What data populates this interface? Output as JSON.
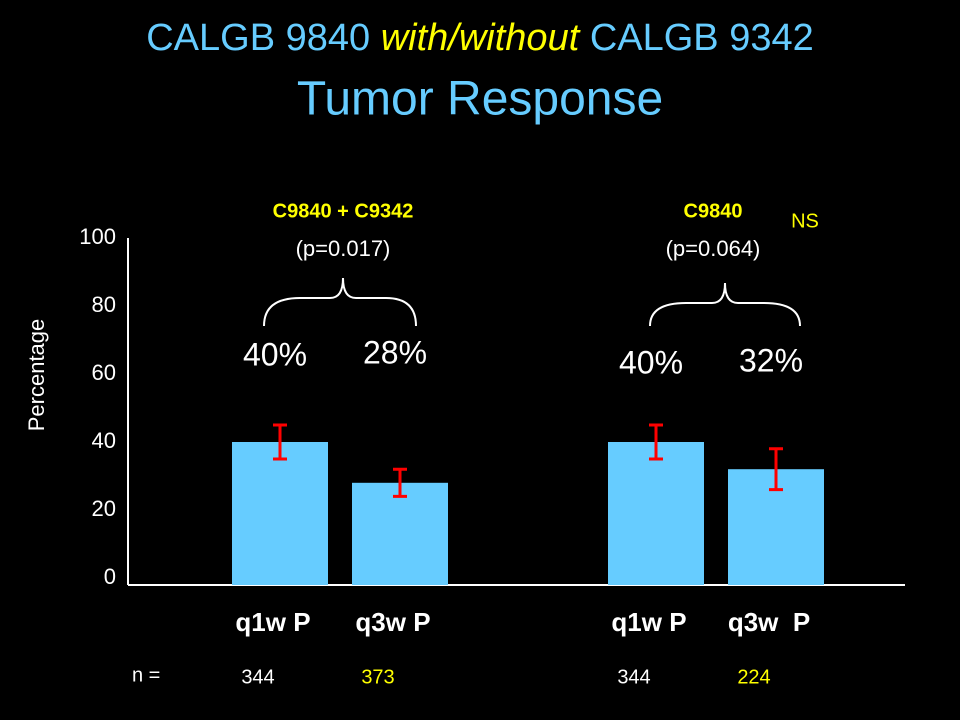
{
  "chart_data": {
    "type": "bar",
    "title": {
      "part1": "CALGB 9840 ",
      "part2": "with/without",
      "part3": " CALGB 9342"
    },
    "subtitle": "Tumor Response",
    "y_label": "Percentage",
    "categories": [
      "q1w P",
      "q3w P",
      "q1w P",
      "q3w  P"
    ],
    "values": [
      40,
      28,
      40,
      32
    ],
    "value_labels": [
      "40%",
      "28%",
      "40%",
      "32%"
    ],
    "errors": [
      5,
      4,
      5,
      6
    ],
    "color": "#66ccff",
    "error_color": "#ff0000",
    "ylim": [
      0,
      100
    ],
    "yticks": [
      0,
      20,
      40,
      60,
      80,
      100
    ],
    "groups": [
      {
        "name": "C9840 + C9342",
        "p": "(p=0.017)"
      },
      {
        "name": "C9840",
        "p": "(p=0.064)",
        "note": "NS"
      }
    ],
    "n_label": "n =",
    "n_values": [
      "344",
      "373",
      "344",
      "224"
    ],
    "n_colors": [
      "#ffffff",
      "#ffff00",
      "#ffffff",
      "#ffff00"
    ]
  }
}
